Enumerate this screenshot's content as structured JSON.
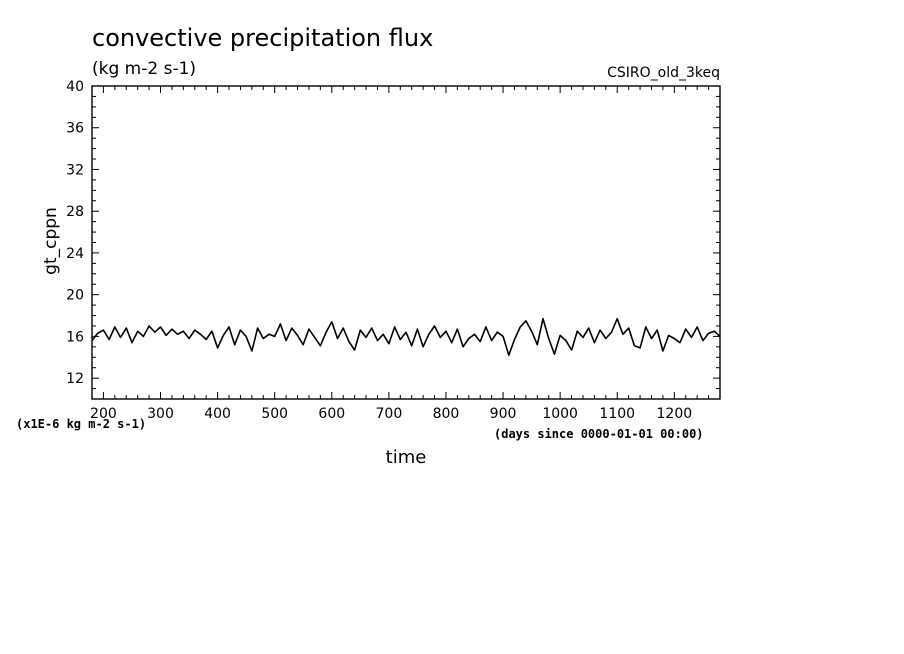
{
  "chart_data": {
    "type": "line",
    "title": "convective precipitation flux",
    "units": "(kg m-2 s-1)",
    "tag": "CSIRO_old_3keq",
    "ylabel": "gt_cppn",
    "xlabel": "time",
    "scale_note": "(x1E-6 kg m-2 s-1)",
    "time_note": "(days since 0000-01-01 00:00)",
    "xlim": [
      180,
      1280
    ],
    "ylim": [
      10,
      40
    ],
    "x_ticks": [
      200,
      300,
      400,
      500,
      600,
      700,
      800,
      900,
      1000,
      1100,
      1200
    ],
    "y_ticks": [
      12,
      16,
      20,
      24,
      28,
      32,
      36,
      40
    ],
    "grid": false,
    "series": [
      {
        "x": [
          180,
          190,
          200,
          210,
          220,
          230,
          240,
          250,
          260,
          270,
          280,
          290,
          300,
          310,
          320,
          330,
          340,
          350,
          360,
          370,
          380,
          390,
          400,
          410,
          420,
          430,
          440,
          450,
          460,
          470,
          480,
          490,
          500,
          510,
          520,
          530,
          540,
          550,
          560,
          570,
          580,
          590,
          600,
          610,
          620,
          630,
          640,
          650,
          660,
          670,
          680,
          690,
          700,
          710,
          720,
          730,
          740,
          750,
          760,
          770,
          780,
          790,
          800,
          810,
          820,
          830,
          840,
          850,
          860,
          870,
          880,
          890,
          900,
          910,
          920,
          930,
          940,
          950,
          960,
          970,
          980,
          990,
          1000,
          1010,
          1020,
          1030,
          1040,
          1050,
          1060,
          1070,
          1080,
          1090,
          1100,
          1110,
          1120,
          1130,
          1140,
          1150,
          1160,
          1170,
          1180,
          1190,
          1200,
          1210,
          1220,
          1230,
          1240,
          1250,
          1260,
          1270,
          1280
        ],
        "y": [
          15.6,
          16.3,
          16.6,
          15.7,
          16.9,
          15.9,
          16.8,
          15.4,
          16.5,
          16.0,
          17.0,
          16.4,
          16.9,
          16.1,
          16.7,
          16.2,
          16.5,
          15.8,
          16.6,
          16.2,
          15.7,
          16.5,
          14.9,
          16.1,
          16.9,
          15.2,
          16.6,
          16.0,
          14.6,
          16.8,
          15.8,
          16.2,
          16.0,
          17.2,
          15.6,
          16.8,
          16.1,
          15.2,
          16.7,
          15.9,
          15.1,
          16.4,
          17.4,
          15.8,
          16.8,
          15.5,
          14.7,
          16.6,
          15.9,
          16.8,
          15.6,
          16.2,
          15.3,
          16.9,
          15.7,
          16.4,
          15.1,
          16.7,
          15.0,
          16.2,
          17.0,
          15.9,
          16.5,
          15.4,
          16.7,
          15.0,
          15.8,
          16.2,
          15.5,
          16.9,
          15.6,
          16.4,
          16.0,
          14.2,
          15.7,
          16.9,
          17.5,
          16.5,
          15.2,
          17.7,
          15.8,
          14.3,
          16.1,
          15.6,
          14.7,
          16.5,
          15.9,
          16.8,
          15.4,
          16.6,
          15.8,
          16.4,
          17.7,
          16.2,
          16.8,
          15.1,
          14.9,
          16.9,
          15.8,
          16.6,
          14.6,
          16.1,
          15.8,
          15.4,
          16.7,
          15.9,
          16.9,
          15.6,
          16.3,
          16.5,
          16.0
        ]
      }
    ]
  }
}
